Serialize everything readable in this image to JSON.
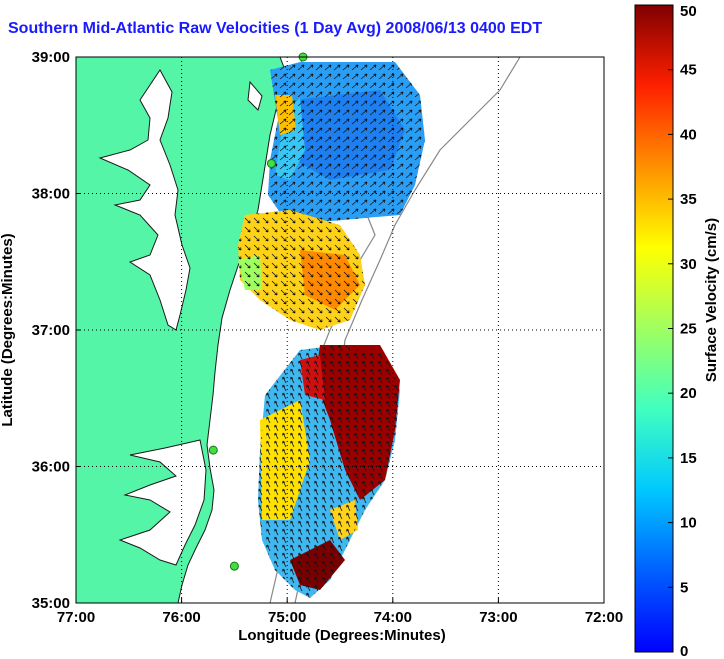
{
  "title": "Southern Mid-Atlantic Raw Velocities (1 Day Avg) 2008/06/13 0400 EDT",
  "axes": {
    "xlabel": "Longitude (Degrees:Minutes)",
    "ylabel": "Latitude (Degrees:Minutes)",
    "x_ticks": [
      "77:00",
      "76:00",
      "75:00",
      "74:00",
      "73:00",
      "72:00"
    ],
    "y_ticks": [
      "39:00",
      "38:00",
      "37:00",
      "36:00",
      "35:00"
    ],
    "x_range": [
      -77,
      -72
    ],
    "y_range": [
      35,
      39
    ]
  },
  "colorbar": {
    "label": "Surface Velocity (cm/s)",
    "ticks": [
      "50",
      "45",
      "40",
      "35",
      "30",
      "25",
      "20",
      "15",
      "10",
      "5",
      "0"
    ],
    "range": [
      0,
      50
    ],
    "colormap": "jet"
  },
  "colors": {
    "land": "#55f5a8",
    "water": "#ffffff",
    "title": "#1a1aff",
    "station": "#44dd44"
  },
  "stations": [
    {
      "lon": -74.85,
      "lat": 39.0
    },
    {
      "lon": -75.15,
      "lat": 38.22
    },
    {
      "lon": -75.7,
      "lat": 36.12
    },
    {
      "lon": -75.5,
      "lat": 35.27
    }
  ]
}
